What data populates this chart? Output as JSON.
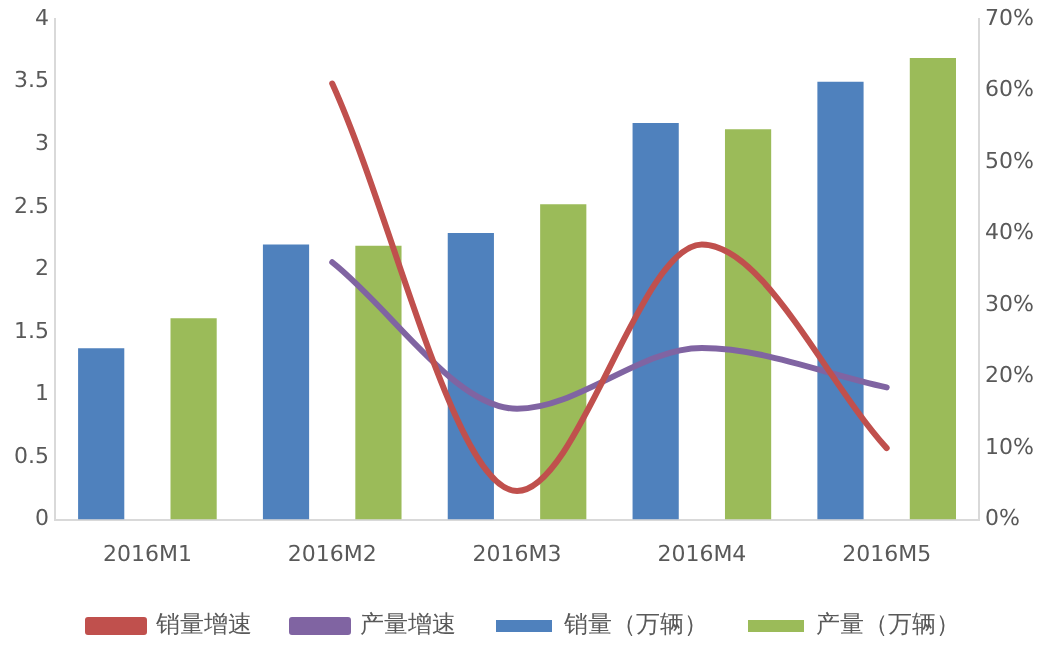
{
  "chart_data": {
    "type": "bar",
    "categories": [
      "2016M1",
      "2016M2",
      "2016M3",
      "2016M4",
      "2016M5"
    ],
    "series": [
      {
        "name": "销量（万辆）",
        "color": "#4f81bd",
        "values": [
          1.37,
          2.2,
          2.29,
          3.17,
          3.5
        ]
      },
      {
        "name": "产量（万辆）",
        "color": "#9bbb59",
        "values": [
          1.61,
          2.19,
          2.52,
          3.12,
          3.69
        ]
      },
      {
        "name": "销量增速",
        "type": "line",
        "axis": "y2",
        "color": "#c0504d",
        "values": [
          null,
          61,
          4,
          38.5,
          10
        ]
      },
      {
        "name": "产量增速",
        "type": "line",
        "axis": "y2",
        "color": "#8064a2",
        "values": [
          null,
          36,
          15.5,
          24,
          18.5
        ]
      }
    ],
    "ylim": [
      0,
      4
    ],
    "yticks": [
      0,
      0.5,
      1,
      1.5,
      2,
      2.5,
      3,
      3.5,
      4
    ],
    "y2lim": [
      0,
      70
    ],
    "y2ticks": [
      {
        "value": 0,
        "label": "0%"
      },
      {
        "value": 10,
        "label": "10%"
      },
      {
        "value": 20,
        "label": "20%"
      },
      {
        "value": 30,
        "label": "30%"
      },
      {
        "value": 40,
        "label": "40%"
      },
      {
        "value": 50,
        "label": "50%"
      },
      {
        "value": 60,
        "label": "60%"
      },
      {
        "value": 70,
        "label": "70%"
      }
    ],
    "grid": false,
    "legend": "bottom",
    "marker": "none",
    "line_style": "solid"
  }
}
